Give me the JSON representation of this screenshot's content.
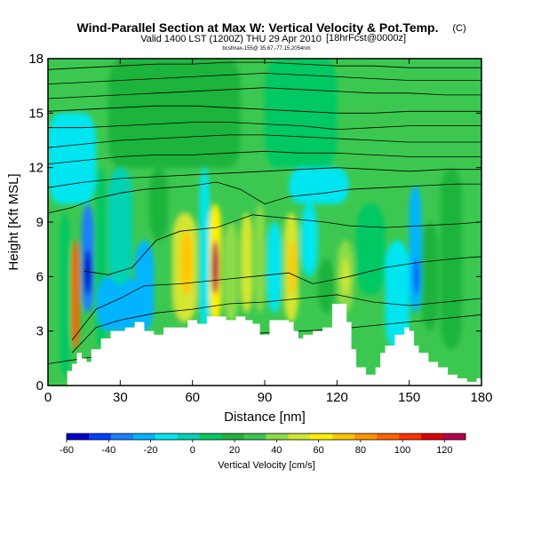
{
  "chart_data": {
    "type": "heatmap",
    "title": "Wind-Parallel Section at Max W: Vertical Velocity & Pot.Temp.",
    "title_suffix": "(C)",
    "subtitle": "Valid 1400 LST (1200Z) THU 29 Apr 2010",
    "subtitle_suffix": "[18hrFcst@0000z]",
    "info_line": "bcsfmax-155@ 35.67,-77.15,2054nm",
    "xlabel": "Distance [nm]",
    "ylabel": "Height [Kft MSL]",
    "xlim": [
      0,
      180
    ],
    "ylim": [
      0,
      18
    ],
    "x_ticks": [
      0,
      30,
      60,
      90,
      120,
      150,
      180
    ],
    "y_ticks": [
      0,
      3,
      6,
      9,
      12,
      15,
      18
    ],
    "colorbar": {
      "label": "Vertical Velocity [cm/s]",
      "range": [
        -60,
        130
      ],
      "ticks": [
        -60,
        -40,
        -20,
        0,
        20,
        40,
        60,
        80,
        100,
        120
      ],
      "colors": [
        "#0000c8",
        "#0040ff",
        "#1a80ff",
        "#00b4ff",
        "#00e6f0",
        "#00d2b4",
        "#00c864",
        "#1eb43c",
        "#3cc850",
        "#8cdc46",
        "#d2e632",
        "#fff000",
        "#ffc800",
        "#ff9600",
        "#ff6400",
        "#ff3200",
        "#dc0000",
        "#b40050"
      ]
    },
    "velocity_cells": [
      {
        "x": [
          5,
          9
        ],
        "y": [
          0.5,
          9.5
        ],
        "w": 10
      },
      {
        "x": [
          10,
          13
        ],
        "y": [
          2,
          8
        ],
        "w": 90
      },
      {
        "x": [
          14,
          19
        ],
        "y": [
          4,
          10
        ],
        "w": -35
      },
      {
        "x": [
          15,
          18
        ],
        "y": [
          5,
          7.5
        ],
        "w": -50
      },
      {
        "x": [
          20,
          24
        ],
        "y": [
          2,
          12
        ],
        "w": 10
      },
      {
        "x": [
          20,
          38
        ],
        "y": [
          3,
          6
        ],
        "w": -20
      },
      {
        "x": [
          25,
          35
        ],
        "y": [
          5.5,
          12
        ],
        "w": -5
      },
      {
        "x": [
          36,
          44
        ],
        "y": [
          3,
          8
        ],
        "w": -20
      },
      {
        "x": [
          42,
          50
        ],
        "y": [
          8,
          12
        ],
        "w": 15
      },
      {
        "x": [
          50,
          56
        ],
        "y": [
          3,
          10
        ],
        "w": 30
      },
      {
        "x": [
          52,
          62
        ],
        "y": [
          3.5,
          9.5
        ],
        "w": 55
      },
      {
        "x": [
          55,
          60
        ],
        "y": [
          5,
          8.5
        ],
        "w": 70
      },
      {
        "x": [
          63,
          67
        ],
        "y": [
          3,
          12
        ],
        "w": -15
      },
      {
        "x": [
          67,
          72
        ],
        "y": [
          3.5,
          10
        ],
        "w": 60
      },
      {
        "x": [
          68,
          71
        ],
        "y": [
          5,
          8
        ],
        "w": 120
      },
      {
        "x": [
          73,
          79
        ],
        "y": [
          3.5,
          9
        ],
        "w": 35
      },
      {
        "x": [
          80,
          85
        ],
        "y": [
          4,
          9.5
        ],
        "w": 55
      },
      {
        "x": [
          86,
          90
        ],
        "y": [
          4,
          10
        ],
        "w": 45
      },
      {
        "x": [
          91,
          97
        ],
        "y": [
          4,
          9
        ],
        "w": -15
      },
      {
        "x": [
          98,
          104
        ],
        "y": [
          3.5,
          9.5
        ],
        "w": 50
      },
      {
        "x": [
          100,
          103
        ],
        "y": [
          5,
          8
        ],
        "w": 70
      },
      {
        "x": [
          105,
          112
        ],
        "y": [
          6,
          10
        ],
        "w": -15
      },
      {
        "x": [
          112,
          119
        ],
        "y": [
          4,
          7
        ],
        "w": 15
      },
      {
        "x": [
          120,
          127
        ],
        "y": [
          4,
          8
        ],
        "w": 35
      },
      {
        "x": [
          122,
          125
        ],
        "y": [
          5,
          7
        ],
        "w": 50
      },
      {
        "x": [
          128,
          140
        ],
        "y": [
          5,
          10
        ],
        "w": 10
      },
      {
        "x": [
          140,
          150
        ],
        "y": [
          2,
          8
        ],
        "w": -15
      },
      {
        "x": [
          150,
          155
        ],
        "y": [
          4,
          11
        ],
        "w": -20
      },
      {
        "x": [
          152,
          154
        ],
        "y": [
          5,
          7
        ],
        "w": -40
      },
      {
        "x": [
          155,
          162
        ],
        "y": [
          3,
          9
        ],
        "w": 20
      },
      {
        "x": [
          163,
          172
        ],
        "y": [
          2,
          12
        ],
        "w": 15
      },
      {
        "x": [
          25,
          80
        ],
        "y": [
          12,
          18
        ],
        "w": 15
      },
      {
        "x": [
          90,
          120
        ],
        "y": [
          12,
          18
        ],
        "w": 12
      },
      {
        "x": [
          0,
          20
        ],
        "y": [
          10,
          15
        ],
        "w": -10
      },
      {
        "x": [
          100,
          125
        ],
        "y": [
          10,
          12
        ],
        "w": -10
      }
    ],
    "terrain_steps": [
      [
        0,
        0
      ],
      [
        5,
        0
      ],
      [
        8,
        0.8
      ],
      [
        10,
        1.2
      ],
      [
        12,
        1.8
      ],
      [
        14,
        1.5
      ],
      [
        16,
        1.3
      ],
      [
        18,
        2.0
      ],
      [
        22,
        2.6
      ],
      [
        26,
        3.0
      ],
      [
        32,
        3.2
      ],
      [
        36,
        3.5
      ],
      [
        40,
        3.0
      ],
      [
        44,
        2.8
      ],
      [
        48,
        3.2
      ],
      [
        54,
        3.2
      ],
      [
        58,
        3.6
      ],
      [
        62,
        3.4
      ],
      [
        66,
        3.8
      ],
      [
        70,
        3.8
      ],
      [
        74,
        3.6
      ],
      [
        78,
        3.8
      ],
      [
        82,
        3.6
      ],
      [
        85,
        3.4
      ],
      [
        88,
        2.8
      ],
      [
        92,
        3.6
      ],
      [
        96,
        3.6
      ],
      [
        100,
        3.5
      ],
      [
        102,
        3.0
      ],
      [
        104,
        2.6
      ],
      [
        106,
        2.8
      ],
      [
        110,
        3.0
      ],
      [
        114,
        3.2
      ],
      [
        118,
        4.5
      ],
      [
        122,
        4.5
      ],
      [
        124,
        3.5
      ],
      [
        126,
        2.0
      ],
      [
        128,
        1.0
      ],
      [
        132,
        0.6
      ],
      [
        136,
        1.0
      ],
      [
        138,
        1.8
      ],
      [
        140,
        2.2
      ],
      [
        144,
        2.8
      ],
      [
        148,
        3.2
      ],
      [
        150,
        3.0
      ],
      [
        152,
        2.2
      ],
      [
        154,
        1.8
      ],
      [
        158,
        1.3
      ],
      [
        162,
        1.0
      ],
      [
        166,
        0.6
      ],
      [
        170,
        0.4
      ],
      [
        174,
        0.2
      ],
      [
        178,
        0.4
      ],
      [
        180,
        0.4
      ]
    ],
    "theta_lines": [
      {
        "x": [
          0,
          15,
          30,
          45,
          60,
          75,
          90,
          105,
          120,
          135,
          150,
          165,
          180
        ],
        "y": [
          1.2,
          1.5,
          1.8,
          2.1,
          2.4,
          2.7,
          2.9,
          3.0,
          3.1,
          3.3,
          3.5,
          3.7,
          3.9
        ]
      },
      {
        "x": [
          10,
          20,
          30,
          45,
          60,
          75,
          90,
          105,
          120,
          135,
          150,
          165,
          180
        ],
        "y": [
          1.8,
          3.2,
          3.6,
          4.0,
          4.2,
          4.5,
          4.6,
          4.8,
          5.0,
          4.6,
          4.4,
          4.6,
          4.8
        ]
      },
      {
        "x": [
          10,
          20,
          30,
          40,
          55,
          70,
          85,
          100,
          110,
          125,
          140,
          155,
          170,
          180
        ],
        "y": [
          2.5,
          4.2,
          4.8,
          5.5,
          5.6,
          5.8,
          6.0,
          6.2,
          5.6,
          6.0,
          6.5,
          6.8,
          7.0,
          7.1
        ]
      },
      {
        "x": [
          15,
          25,
          35,
          45,
          55,
          70,
          85,
          100,
          115,
          125,
          140,
          155,
          170,
          180
        ],
        "y": [
          6.3,
          6.1,
          6.5,
          8.0,
          8.5,
          8.7,
          9.4,
          9.2,
          9.0,
          8.8,
          8.7,
          8.8,
          8.9,
          9.0
        ]
      },
      {
        "x": [
          0,
          10,
          20,
          30,
          40,
          50,
          60,
          70,
          80,
          90,
          100,
          115,
          125,
          140,
          155,
          170,
          180
        ],
        "y": [
          9.5,
          9.8,
          10.3,
          10.6,
          10.8,
          10.9,
          11.0,
          11.2,
          10.8,
          10.0,
          10.4,
          10.6,
          10.8,
          10.9,
          11.0,
          11.1,
          11.1
        ]
      },
      {
        "x": [
          0,
          15,
          30,
          45,
          60,
          75,
          90,
          105,
          120,
          135,
          150,
          165,
          180
        ],
        "y": [
          10.9,
          11.2,
          11.4,
          11.5,
          11.6,
          11.7,
          11.8,
          11.9,
          12.0,
          11.9,
          11.8,
          11.9,
          11.9
        ]
      },
      {
        "x": [
          0,
          15,
          30,
          45,
          60,
          75,
          90,
          105,
          120,
          135,
          150,
          165,
          180
        ],
        "y": [
          12.2,
          12.4,
          12.6,
          12.7,
          12.7,
          12.8,
          12.9,
          12.8,
          12.8,
          12.7,
          12.6,
          12.6,
          12.6
        ]
      },
      {
        "x": [
          0,
          15,
          30,
          45,
          60,
          75,
          90,
          105,
          120,
          135,
          150,
          165,
          180
        ],
        "y": [
          13.1,
          13.3,
          13.5,
          13.6,
          13.7,
          13.8,
          13.8,
          13.7,
          13.6,
          13.5,
          13.4,
          13.4,
          13.4
        ]
      },
      {
        "x": [
          0,
          15,
          30,
          45,
          60,
          75,
          90,
          105,
          120,
          135,
          150,
          165,
          180
        ],
        "y": [
          14.2,
          14.2,
          14.3,
          14.4,
          14.5,
          14.5,
          14.4,
          14.3,
          14.1,
          14.2,
          14.3,
          14.3,
          14.3
        ]
      },
      {
        "x": [
          0,
          15,
          30,
          45,
          60,
          75,
          90,
          105,
          120,
          135,
          150,
          165,
          180
        ],
        "y": [
          15.1,
          15.2,
          15.3,
          15.4,
          15.4,
          15.3,
          15.2,
          15.1,
          15.0,
          15.0,
          15.1,
          15.1,
          15.1
        ]
      },
      {
        "x": [
          0,
          15,
          30,
          45,
          60,
          75,
          90,
          105,
          120,
          135,
          150,
          165,
          180
        ],
        "y": [
          15.8,
          15.9,
          16.0,
          16.1,
          16.2,
          16.3,
          16.4,
          16.3,
          16.2,
          16.1,
          16.1,
          16.0,
          16.0
        ]
      },
      {
        "x": [
          0,
          15,
          30,
          45,
          60,
          75,
          90,
          105,
          120,
          135,
          150,
          165,
          180
        ],
        "y": [
          16.6,
          16.7,
          16.8,
          16.9,
          17.0,
          17.1,
          17.2,
          17.1,
          17.0,
          16.9,
          16.8,
          16.8,
          16.8
        ]
      },
      {
        "x": [
          0,
          15,
          30,
          45,
          60,
          75,
          90,
          105,
          120,
          135,
          150,
          165,
          180
        ],
        "y": [
          17.4,
          17.5,
          17.6,
          17.7,
          17.7,
          17.8,
          17.8,
          17.7,
          17.6,
          17.6,
          17.5,
          17.5,
          17.5
        ]
      }
    ]
  }
}
